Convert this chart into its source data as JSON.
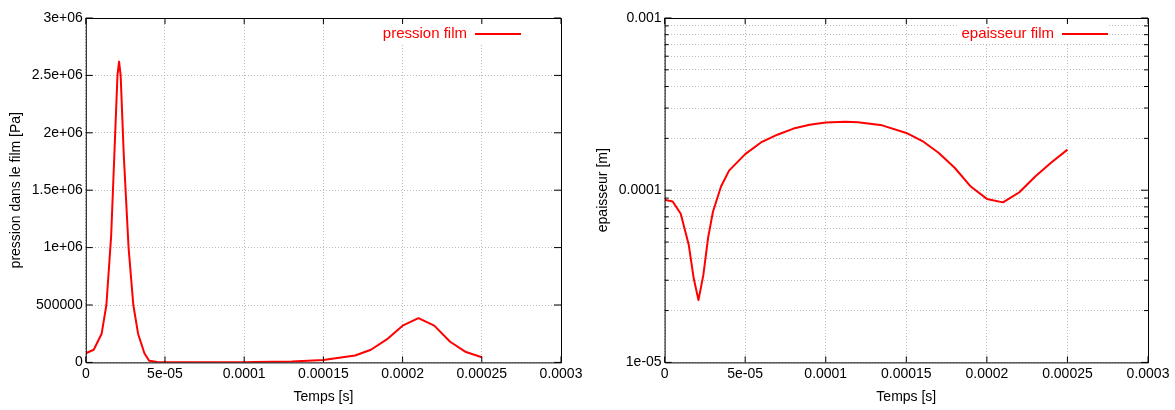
{
  "chart_data": [
    {
      "type": "line",
      "xlabel": "Temps [s]",
      "ylabel": "pression dans le film [Pa]",
      "x": [
        0,
        5e-06,
        1e-05,
        1.3e-05,
        1.6e-05,
        1.8e-05,
        2e-05,
        2.1e-05,
        2.2e-05,
        2.4e-05,
        2.7e-05,
        3e-05,
        3.3e-05,
        3.7e-05,
        4e-05,
        4.5e-05,
        5e-05,
        0.0001,
        0.00013,
        0.00015,
        0.00017,
        0.00018,
        0.00019,
        0.0002,
        0.00021,
        0.00022,
        0.00023,
        0.00024,
        0.00025
      ],
      "series": [
        {
          "name": "pression film",
          "color": "#ff0000",
          "values": [
            80000,
            110000,
            250000,
            500000,
            1100000,
            1800000,
            2500000,
            2620000,
            2500000,
            1800000,
            1000000,
            500000,
            250000,
            80000,
            15000,
            3000,
            1000,
            2000,
            8000,
            20000,
            60000,
            110000,
            200000,
            320000,
            385000,
            320000,
            180000,
            90000,
            45000
          ]
        }
      ],
      "xlim": [
        0,
        0.0003
      ],
      "xticks": [
        0,
        {
          "value": 5e-05,
          "label": "5e-05"
        },
        0.0001,
        0.00015,
        0.0002,
        0.00025,
        0.0003
      ],
      "ylim": [
        0,
        3000000
      ],
      "yticks": [
        0,
        500000,
        {
          "value": 1000000,
          "label": "1e+06"
        },
        {
          "value": 1500000,
          "label": "1.5e+06"
        },
        {
          "value": 2000000,
          "label": "2e+06"
        },
        {
          "value": 2500000,
          "label": "2.5e+06"
        },
        {
          "value": 3000000,
          "label": "3e+06"
        }
      ],
      "grid": true,
      "legend": "top right",
      "marker": "none",
      "line_style": "solid"
    },
    {
      "type": "line",
      "xlabel": "Temps [s]",
      "ylabel": "epaisseur [m]",
      "x": [
        0,
        5e-06,
        1e-05,
        1.5e-05,
        1.8e-05,
        2.1e-05,
        2.4e-05,
        2.7e-05,
        3e-05,
        3.5e-05,
        4e-05,
        5e-05,
        6e-05,
        7e-05,
        8e-05,
        9e-05,
        0.0001,
        0.000112,
        0.00012,
        0.000135,
        0.00015,
        0.00016,
        0.00017,
        0.00018,
        0.00019,
        0.0002,
        0.00021,
        0.00022,
        0.00023,
        0.00024,
        0.00025
      ],
      "series": [
        {
          "name": "epaisseur film",
          "color": "#ff0000",
          "values": [
            8.8e-05,
            8.6e-05,
            7.3e-05,
            4.8e-05,
            3.1e-05,
            2.3e-05,
            3.2e-05,
            5.3e-05,
            7.5e-05,
            0.000105,
            0.00013,
            0.000162,
            0.00019,
            0.00021,
            0.000228,
            0.00024,
            0.000247,
            0.00025,
            0.000248,
            0.000238,
            0.000215,
            0.000193,
            0.000165,
            0.000135,
            0.000105,
            8.9e-05,
            8.5e-05,
            9.7e-05,
            0.00012,
            0.000145,
            0.000172
          ]
        }
      ],
      "xlim": [
        0,
        0.0003
      ],
      "xticks": [
        0,
        {
          "value": 5e-05,
          "label": "5e-05"
        },
        0.0001,
        0.00015,
        0.0002,
        0.00025,
        0.0003
      ],
      "ylim": [
        1e-05,
        0.001
      ],
      "yticks": [
        {
          "value": 1e-05,
          "label": "1e-05"
        },
        {
          "value": 2e-05,
          "label": null
        },
        {
          "value": 3e-05,
          "label": null
        },
        {
          "value": 4e-05,
          "label": null
        },
        {
          "value": 5e-05,
          "label": null
        },
        {
          "value": 6e-05,
          "label": null
        },
        {
          "value": 7e-05,
          "label": null
        },
        {
          "value": 8e-05,
          "label": null
        },
        {
          "value": 9e-05,
          "label": null
        },
        0.0001,
        {
          "value": 0.0002,
          "label": null
        },
        {
          "value": 0.0003,
          "label": null
        },
        {
          "value": 0.0004,
          "label": null
        },
        {
          "value": 0.0005,
          "label": null
        },
        {
          "value": 0.0006,
          "label": null
        },
        {
          "value": 0.0007,
          "label": null
        },
        {
          "value": 0.0008,
          "label": null
        },
        {
          "value": 0.0009,
          "label": null
        },
        0.001
      ],
      "log": "y",
      "grid": true,
      "legend": "top right",
      "marker": "none",
      "line_style": "solid"
    }
  ]
}
